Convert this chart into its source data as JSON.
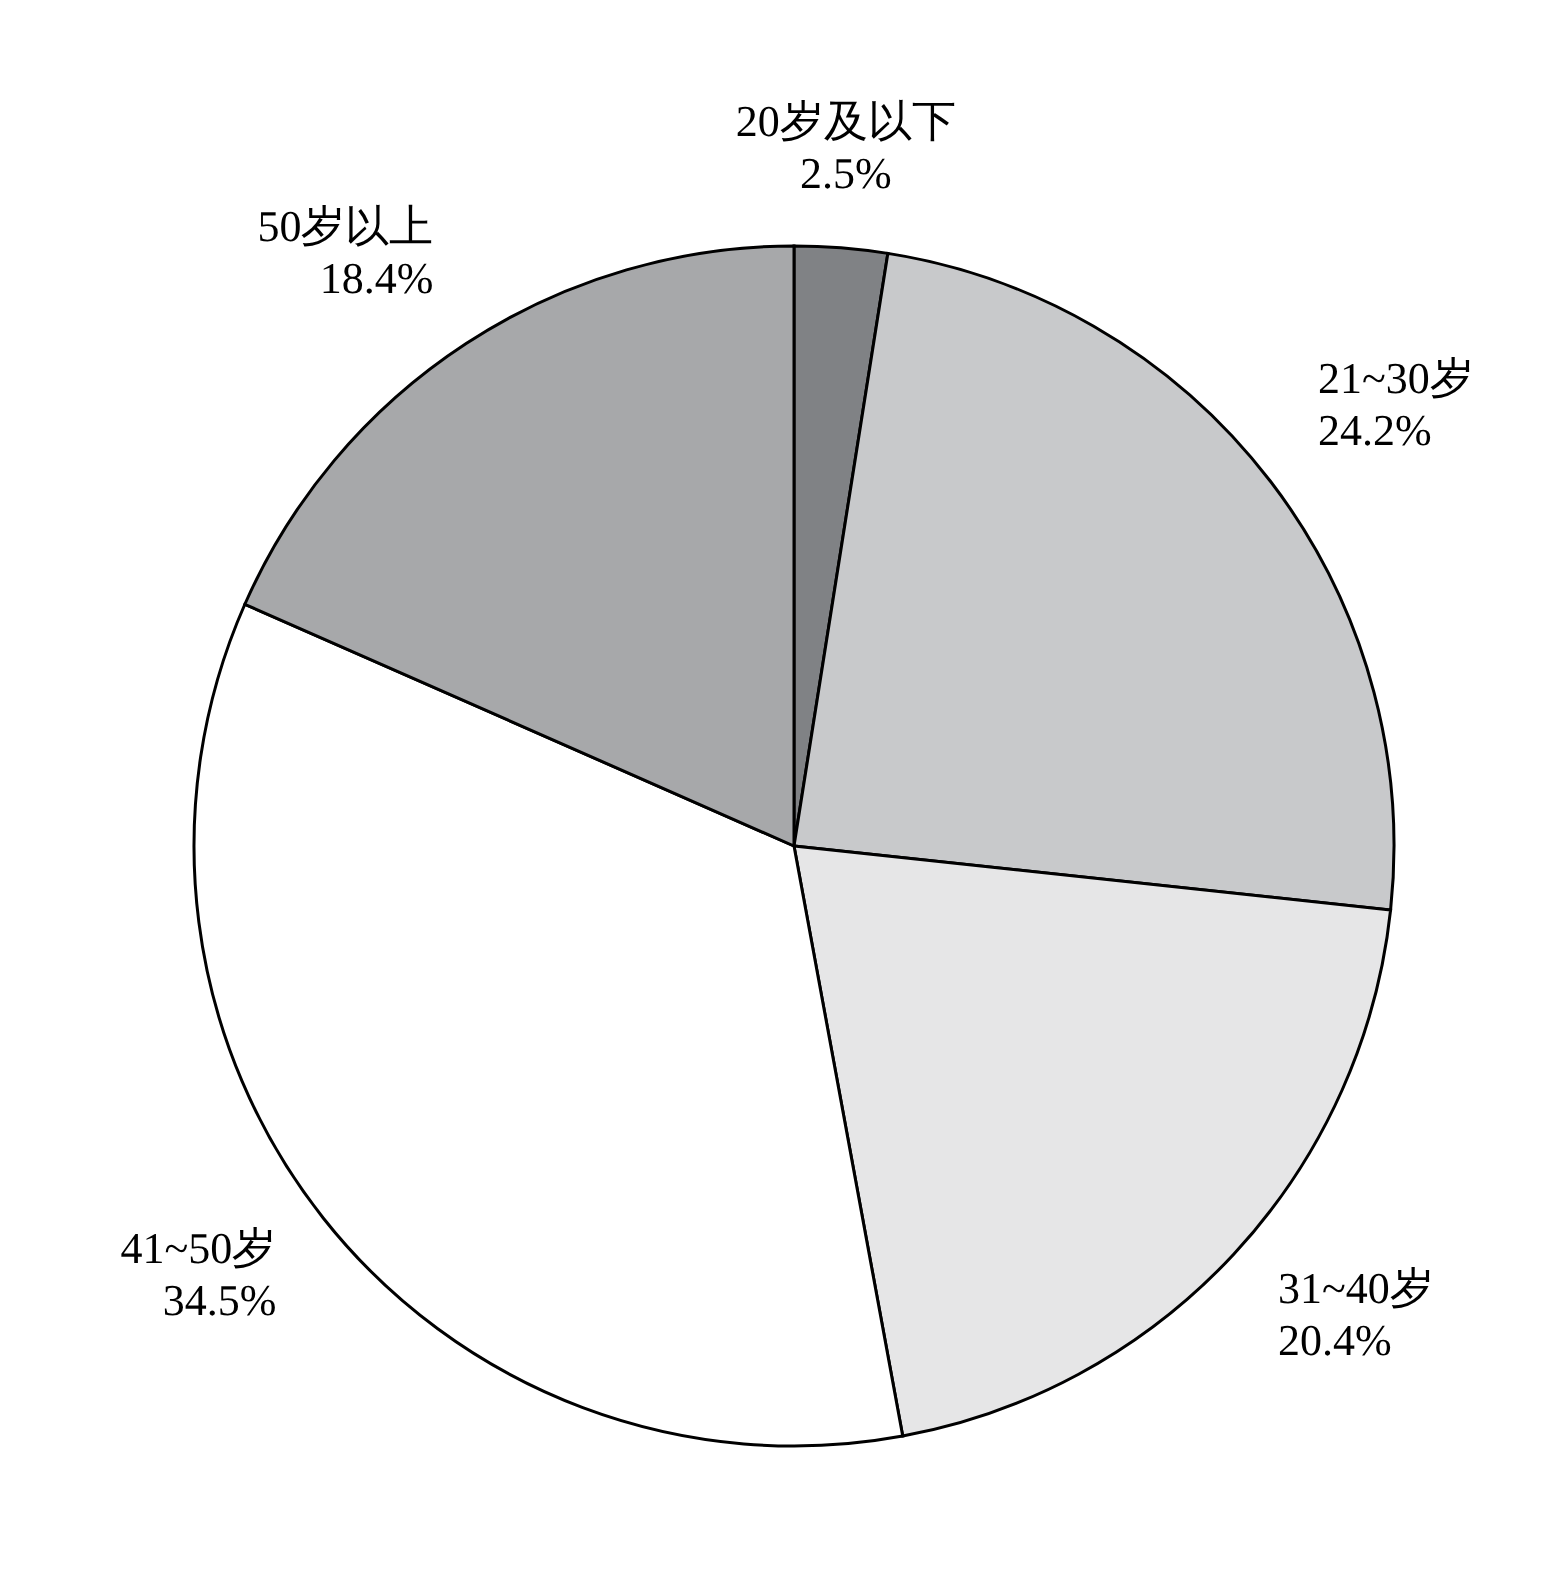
{
  "chart_data": {
    "type": "pie",
    "categories": [
      "20岁及以下",
      "21~30岁",
      "31~40岁",
      "41~50岁",
      "50岁以上"
    ],
    "values": [
      2.5,
      24.2,
      20.4,
      34.5,
      18.4
    ],
    "value_labels": [
      "2.5%",
      "24.2%",
      "20.4%",
      "34.5%",
      "18.4%"
    ],
    "colors": [
      "#808285",
      "#c8c9cb",
      "#e6e6e7",
      "#ffffff",
      "#a7a8aa"
    ],
    "legend": false
  }
}
